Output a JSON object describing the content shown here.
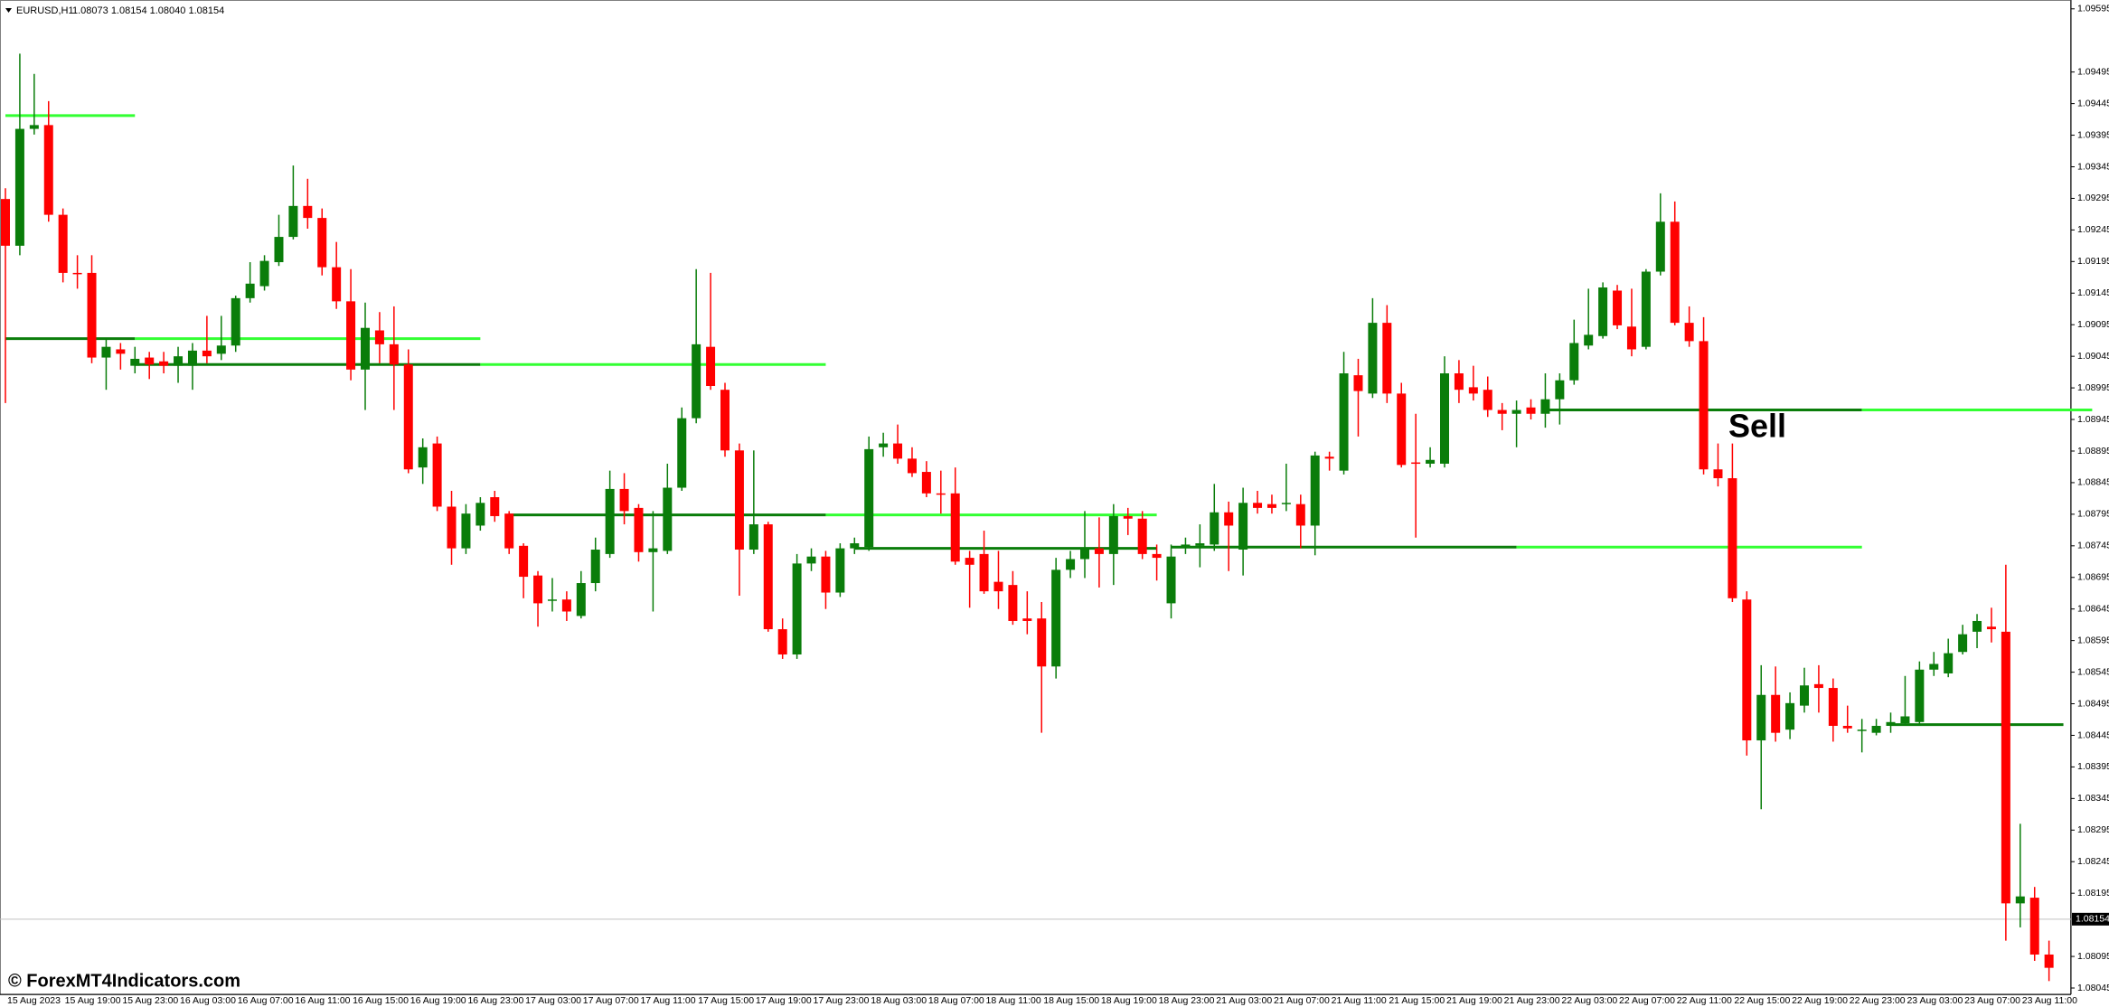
{
  "chart_data": {
    "type": "candlestick",
    "title": "EURUSD,H1",
    "title_ohlc": "1.08073 1.08154 1.08040 1.08154",
    "annotation": "Sell",
    "watermark": "© ForexMT4Indicators.com",
    "up_color": "#0a7d0a",
    "down_color": "#ff0000",
    "bid": 1.08154,
    "ylim": [
      1.08035,
      1.09609
    ],
    "yticks": [
      1.08045,
      1.08095,
      1.08195,
      1.08245,
      1.08295,
      1.08345,
      1.08395,
      1.08445,
      1.08495,
      1.08545,
      1.08595,
      1.08645,
      1.08695,
      1.08745,
      1.08795,
      1.08845,
      1.08895,
      1.08945,
      1.08995,
      1.09045,
      1.09095,
      1.09145,
      1.09195,
      1.09245,
      1.09295,
      1.09345,
      1.09395,
      1.09445,
      1.09495,
      1.09595
    ],
    "categories": [
      "15 Aug 2023",
      null,
      null,
      null,
      "15 Aug 19:00",
      null,
      null,
      null,
      "15 Aug 23:00",
      null,
      null,
      null,
      "16 Aug 03:00",
      null,
      null,
      null,
      "16 Aug 07:00",
      null,
      null,
      null,
      "16 Aug 11:00",
      null,
      null,
      null,
      "16 Aug 15:00",
      null,
      null,
      null,
      "16 Aug 19:00",
      null,
      null,
      null,
      "16 Aug 23:00",
      null,
      null,
      null,
      "17 Aug 03:00",
      null,
      null,
      null,
      "17 Aug 07:00",
      null,
      null,
      null,
      "17 Aug 11:00",
      null,
      null,
      null,
      "17 Aug 15:00",
      null,
      null,
      null,
      "17 Aug 19:00",
      null,
      null,
      null,
      "17 Aug 23:00",
      null,
      null,
      null,
      "18 Aug 03:00",
      null,
      null,
      null,
      "18 Aug 07:00",
      null,
      null,
      null,
      "18 Aug 11:00",
      null,
      null,
      null,
      "18 Aug 15:00",
      null,
      null,
      null,
      "18 Aug 19:00",
      null,
      null,
      null,
      "18 Aug 23:00",
      null,
      null,
      null,
      "21 Aug 03:00",
      null,
      null,
      null,
      "21 Aug 07:00",
      null,
      null,
      null,
      "21 Aug 11:00",
      null,
      null,
      null,
      "21 Aug 15:00",
      null,
      null,
      null,
      "21 Aug 19:00",
      null,
      null,
      null,
      "21 Aug 23:00",
      null,
      null,
      null,
      "22 Aug 03:00",
      null,
      null,
      null,
      "22 Aug 07:00",
      null,
      null,
      null,
      "22 Aug 11:00",
      null,
      null,
      null,
      "22 Aug 15:00",
      null,
      null,
      null,
      "22 Aug 19:00",
      null,
      null,
      null,
      "22 Aug 23:00",
      null,
      null,
      null,
      "23 Aug 03:00",
      null,
      null,
      null,
      "23 Aug 07:00",
      null,
      null,
      null,
      "23 Aug 11:00",
      null,
      null
    ],
    "open": [
      1.09294,
      1.0922,
      1.09405,
      1.09411,
      1.09269,
      1.09177,
      1.09177,
      1.09043,
      1.09056,
      1.0903,
      1.09043,
      1.09037,
      1.0903,
      1.0903,
      1.09054,
      1.09049,
      1.09062,
      1.09137,
      1.09156,
      1.09194,
      1.09234,
      1.09283,
      1.09264,
      1.09186,
      1.09132,
      1.09024,
      1.09086,
      1.09064,
      1.09032,
      1.08869,
      1.08907,
      1.08807,
      1.08741,
      1.08777,
      1.08822,
      1.08796,
      1.08745,
      1.08698,
      1.08658,
      1.0866,
      1.08634,
      1.08686,
      1.08732,
      1.08835,
      1.08805,
      1.08735,
      1.08737,
      1.08837,
      1.08947,
      1.0906,
      1.08992,
      1.08896,
      1.08739,
      1.08779,
      1.08613,
      1.08573,
      1.08717,
      1.08728,
      1.08671,
      1.08741,
      1.08743,
      1.08901,
      1.08907,
      1.08883,
      1.08862,
      1.08828,
      1.08828,
      1.08726,
      1.08732,
      1.08688,
      1.08683,
      1.0863,
      1.0863,
      1.08554,
      1.08707,
      1.08724,
      1.08741,
      1.08732,
      1.08792,
      1.08788,
      1.08732,
      1.08654,
      1.08743,
      1.08745,
      1.08747,
      1.08798,
      1.08739,
      1.08813,
      1.08811,
      1.08811,
      1.08811,
      1.08777,
      1.08886,
      1.08864,
      1.09015,
      1.08986,
      1.09098,
      1.08986,
      1.08877,
      1.08875,
      1.08875,
      1.09018,
      1.08996,
      1.08992,
      1.0896,
      1.08954,
      1.08964,
      1.08954,
      1.08977,
      1.09007,
      1.09062,
      1.09077,
      1.09149,
      1.09092,
      1.0906,
      1.09179,
      1.09258,
      1.09098,
      1.09069,
      1.08866,
      1.08852,
      1.0866,
      1.08437,
      1.08509,
      1.08454,
      1.08492,
      1.08526,
      1.0852,
      1.0846,
      1.08452,
      1.08449,
      1.0846,
      1.08464,
      1.08466,
      1.08549,
      1.08543,
      1.08577,
      1.08609,
      1.08617,
      1.08609,
      1.08179,
      1.08188,
      1.08098
    ],
    "high": [
      1.09311,
      1.09524,
      1.09492,
      1.09449,
      1.09279,
      1.09205,
      1.09205,
      1.09073,
      1.09066,
      1.0906,
      1.09052,
      1.09052,
      1.0906,
      1.09066,
      1.09109,
      1.09109,
      1.09141,
      1.09194,
      1.09205,
      1.09269,
      1.09347,
      1.09326,
      1.09279,
      1.09226,
      1.09183,
      1.0913,
      1.09115,
      1.09124,
      1.09056,
      1.08915,
      1.08918,
      1.08832,
      1.08811,
      1.08822,
      1.08832,
      1.088,
      1.08749,
      1.08705,
      1.08694,
      1.08673,
      1.08705,
      1.08758,
      1.08864,
      1.0886,
      1.08811,
      1.088,
      1.08875,
      1.08964,
      1.09183,
      1.09177,
      1.09003,
      1.08907,
      1.08896,
      1.08783,
      1.0863,
      1.08732,
      1.08741,
      1.08737,
      1.08749,
      1.08758,
      1.08918,
      1.08924,
      1.08937,
      1.08901,
      1.08879,
      1.08864,
      1.08869,
      1.08737,
      1.08769,
      1.08737,
      1.08705,
      1.08673,
      1.08656,
      1.08726,
      1.08737,
      1.088,
      1.0879,
      1.08811,
      1.08805,
      1.088,
      1.08747,
      1.08747,
      1.08758,
      1.08779,
      1.08843,
      1.08815,
      1.08837,
      1.08832,
      1.08826,
      1.08875,
      1.08826,
      1.08894,
      1.08894,
      1.09052,
      1.09041,
      1.09137,
      1.09126,
      1.09003,
      1.08954,
      1.08901,
      1.09045,
      1.09039,
      1.0903,
      1.09013,
      1.08971,
      1.08975,
      1.08977,
      1.09018,
      1.09018,
      1.09103,
      1.09152,
      1.09162,
      1.09158,
      1.09152,
      1.09183,
      1.09303,
      1.0929,
      1.09124,
      1.09107,
      1.08907,
      1.08907,
      1.08673,
      1.08556,
      1.08554,
      1.08513,
      1.08552,
      1.08556,
      1.08535,
      1.08492,
      1.08471,
      1.08471,
      1.08481,
      1.08539,
      1.08562,
      1.08577,
      1.08598,
      1.0862,
      1.08637,
      1.08647,
      1.08715,
      1.08305,
      1.08205,
      1.0812
    ],
    "low": [
      1.08971,
      1.09205,
      1.09396,
      1.09258,
      1.09162,
      1.09152,
      1.09034,
      1.08992,
      1.09024,
      1.09018,
      1.09009,
      1.09018,
      1.09003,
      1.08992,
      1.09034,
      1.09039,
      1.09052,
      1.0913,
      1.09149,
      1.09188,
      1.0923,
      1.09247,
      1.09173,
      1.0912,
      1.09007,
      1.0896,
      1.09034,
      1.0896,
      1.0886,
      1.08843,
      1.088,
      1.08715,
      1.08732,
      1.08769,
      1.08783,
      1.08732,
      1.08662,
      1.08617,
      1.08641,
      1.08626,
      1.0863,
      1.08673,
      1.08726,
      1.08779,
      1.0872,
      1.08641,
      1.08732,
      1.08832,
      1.08939,
      1.08992,
      1.08886,
      1.08666,
      1.08732,
      1.08609,
      1.08566,
      1.08566,
      1.08705,
      1.08645,
      1.08664,
      1.08732,
      1.08737,
      1.08886,
      1.08875,
      1.08854,
      1.08822,
      1.08796,
      1.08715,
      1.08647,
      1.08669,
      1.08645,
      1.0862,
      1.08605,
      1.08449,
      1.08535,
      1.08694,
      1.08694,
      1.08679,
      1.08683,
      1.08762,
      1.08724,
      1.0869,
      1.0863,
      1.08732,
      1.08711,
      1.08737,
      1.08705,
      1.08698,
      1.08796,
      1.08796,
      1.088,
      1.08741,
      1.0873,
      1.08864,
      1.08858,
      1.08918,
      1.08979,
      1.08971,
      1.08869,
      1.08758,
      1.08869,
      1.08869,
      1.08971,
      1.08975,
      1.08949,
      1.08928,
      1.08901,
      1.08945,
      1.08932,
      1.08937,
      1.09,
      1.09056,
      1.09073,
      1.09088,
      1.09045,
      1.09056,
      1.09173,
      1.09094,
      1.0906,
      1.08858,
      1.08839,
      1.08656,
      1.08413,
      1.08328,
      1.08435,
      1.08439,
      1.08481,
      1.08481,
      1.08435,
      1.08449,
      1.08418,
      1.08445,
      1.08449,
      1.0846,
      1.0846,
      1.08539,
      1.08537,
      1.08573,
      1.08583,
      1.08592,
      1.0812,
      1.08141,
      1.08088,
      1.08056
    ],
    "close": [
      1.0922,
      1.09405,
      1.09411,
      1.09269,
      1.09177,
      1.09175,
      1.09043,
      1.0906,
      1.09049,
      1.09041,
      1.09032,
      1.0903,
      1.09045,
      1.09054,
      1.09045,
      1.09062,
      1.09137,
      1.0916,
      1.09196,
      1.09234,
      1.09283,
      1.09264,
      1.09186,
      1.09132,
      1.09024,
      1.0909,
      1.09064,
      1.09032,
      1.08866,
      1.08901,
      1.08807,
      1.08741,
      1.08796,
      1.08813,
      1.08792,
      1.08741,
      1.08696,
      1.08654,
      1.0866,
      1.08641,
      1.08686,
      1.08739,
      1.08835,
      1.088,
      1.08735,
      1.08741,
      1.08837,
      1.08947,
      1.09064,
      1.08998,
      1.08896,
      1.08739,
      1.08779,
      1.08613,
      1.08573,
      1.08717,
      1.08728,
      1.08671,
      1.08741,
      1.08749,
      1.08898,
      1.08907,
      1.08883,
      1.0886,
      1.08828,
      1.08826,
      1.0872,
      1.08715,
      1.08673,
      1.08673,
      1.08626,
      1.08626,
      1.08554,
      1.08707,
      1.08724,
      1.08741,
      1.08732,
      1.08792,
      1.08788,
      1.08732,
      1.08726,
      1.08728,
      1.08747,
      1.08749,
      1.08798,
      1.08777,
      1.08813,
      1.08805,
      1.08805,
      1.08813,
      1.08777,
      1.08888,
      1.08883,
      1.09018,
      1.0899,
      1.09098,
      1.08986,
      1.08873,
      1.08875,
      1.08881,
      1.09018,
      1.08992,
      1.08986,
      1.0896,
      1.08954,
      1.0896,
      1.08954,
      1.08977,
      1.09007,
      1.09066,
      1.09079,
      1.09154,
      1.09094,
      1.09056,
      1.09179,
      1.09258,
      1.09098,
      1.09069,
      1.08866,
      1.08852,
      1.08662,
      1.08437,
      1.08509,
      1.08449,
      1.08496,
      1.08524,
      1.0852,
      1.0846,
      1.08456,
      1.08454,
      1.0846,
      1.08466,
      1.08475,
      1.08549,
      1.08558,
      1.08575,
      1.08605,
      1.08626,
      1.08613,
      1.08179,
      1.0819,
      1.08098,
      1.08077
    ],
    "levels": [
      {
        "value": 1.09426,
        "start": 0,
        "end": 9,
        "color": "#32ff32"
      },
      {
        "value": 1.09073,
        "start": 0,
        "end": 9,
        "color": "#0a7d0a"
      },
      {
        "value": 1.09073,
        "start": 9,
        "end": 33,
        "color": "#32ff32"
      },
      {
        "value": 1.09032,
        "start": 9,
        "end": 33,
        "color": "#0a7d0a"
      },
      {
        "value": 1.09032,
        "start": 33,
        "end": 57,
        "color": "#32ff32"
      },
      {
        "value": 1.08794,
        "start": 35,
        "end": 57,
        "color": "#0a7d0a"
      },
      {
        "value": 1.08794,
        "start": 57,
        "end": 80,
        "color": "#32ff32"
      },
      {
        "value": 1.08741,
        "start": 59,
        "end": 80,
        "color": "#0a7d0a"
      },
      {
        "value": 1.08743,
        "start": 81,
        "end": 105,
        "color": "#0a7d0a"
      },
      {
        "value": 1.08743,
        "start": 105,
        "end": 129,
        "color": "#32ff32"
      },
      {
        "value": 1.0896,
        "start": 107,
        "end": 129,
        "color": "#0a7d0a"
      },
      {
        "value": 1.0896,
        "start": 129,
        "end": 145,
        "color": "#32ff32"
      },
      {
        "value": 1.08462,
        "start": 131,
        "end": 143,
        "color": "#0a7d0a"
      }
    ]
  }
}
